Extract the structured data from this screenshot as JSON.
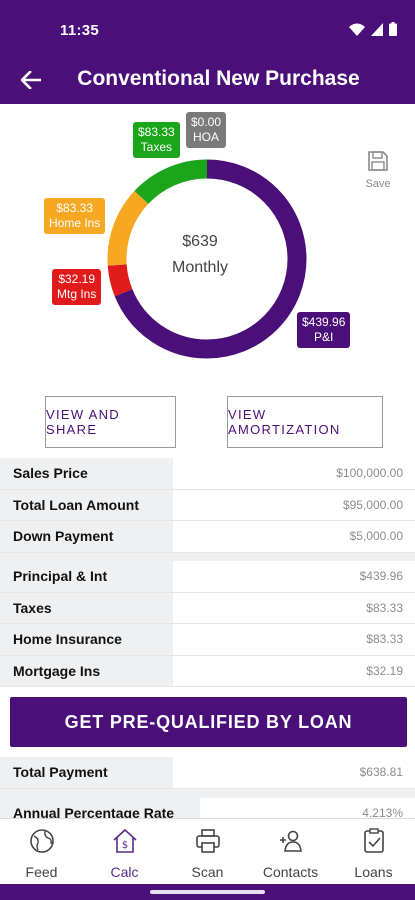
{
  "status": {
    "time": "11:35"
  },
  "header": {
    "title": "Conventional New Purchase"
  },
  "chart": {
    "center_amount": "$639",
    "center_label": "Monthly",
    "save_label": "Save"
  },
  "chart_data": {
    "type": "pie",
    "categories": [
      "P&I",
      "Mtg Ins",
      "Home Ins",
      "Taxes",
      "HOA"
    ],
    "values": [
      439.96,
      32.19,
      83.33,
      83.33,
      0.0
    ],
    "labels": {
      "pi": {
        "amount": "$439.96",
        "name": "P&I"
      },
      "mtg_ins": {
        "amount": "$32.19",
        "name": "Mtg Ins"
      },
      "home_ins": {
        "amount": "$83.33",
        "name": "Home Ins"
      },
      "taxes": {
        "amount": "$83.33",
        "name": "Taxes"
      },
      "hoa": {
        "amount": "$0.00",
        "name": "HOA"
      }
    },
    "colors": {
      "pi": "#4b0f7a",
      "mtg_ins": "#e01b1b",
      "home_ins": "#f7a823",
      "taxes": "#1aa51a",
      "hoa": "#7a7a7a"
    }
  },
  "actions": {
    "view_share": "VIEW AND SHARE",
    "view_amortization": "VIEW AMORTIZATION"
  },
  "loan_table": [
    {
      "label": "Sales Price",
      "value": "$100,000.00"
    },
    {
      "label": "Total Loan Amount",
      "value": "$95,000.00"
    },
    {
      "label": "Down Payment",
      "value": "$5,000.00"
    }
  ],
  "payment_table": [
    {
      "label": "Principal & Int",
      "value": "$439.96"
    },
    {
      "label": "Taxes",
      "value": "$83.33"
    },
    {
      "label": "Home Insurance",
      "value": "$83.33"
    },
    {
      "label": "Mortgage Ins",
      "value": "$32.19"
    }
  ],
  "prequal_button": "GET PRE-QUALIFIED BY LOAN",
  "totals_table": [
    {
      "label": "Total Payment",
      "value": "$638.81"
    },
    {
      "label": "Annual Percentage Rate",
      "value": "4.213%"
    }
  ],
  "nav": [
    {
      "label": "Feed",
      "icon": "globe-icon"
    },
    {
      "label": "Calc",
      "icon": "house-dollar-icon"
    },
    {
      "label": "Scan",
      "icon": "printer-icon"
    },
    {
      "label": "Contacts",
      "icon": "contacts-icon"
    },
    {
      "label": "Loans",
      "icon": "clipboard-check-icon"
    }
  ]
}
